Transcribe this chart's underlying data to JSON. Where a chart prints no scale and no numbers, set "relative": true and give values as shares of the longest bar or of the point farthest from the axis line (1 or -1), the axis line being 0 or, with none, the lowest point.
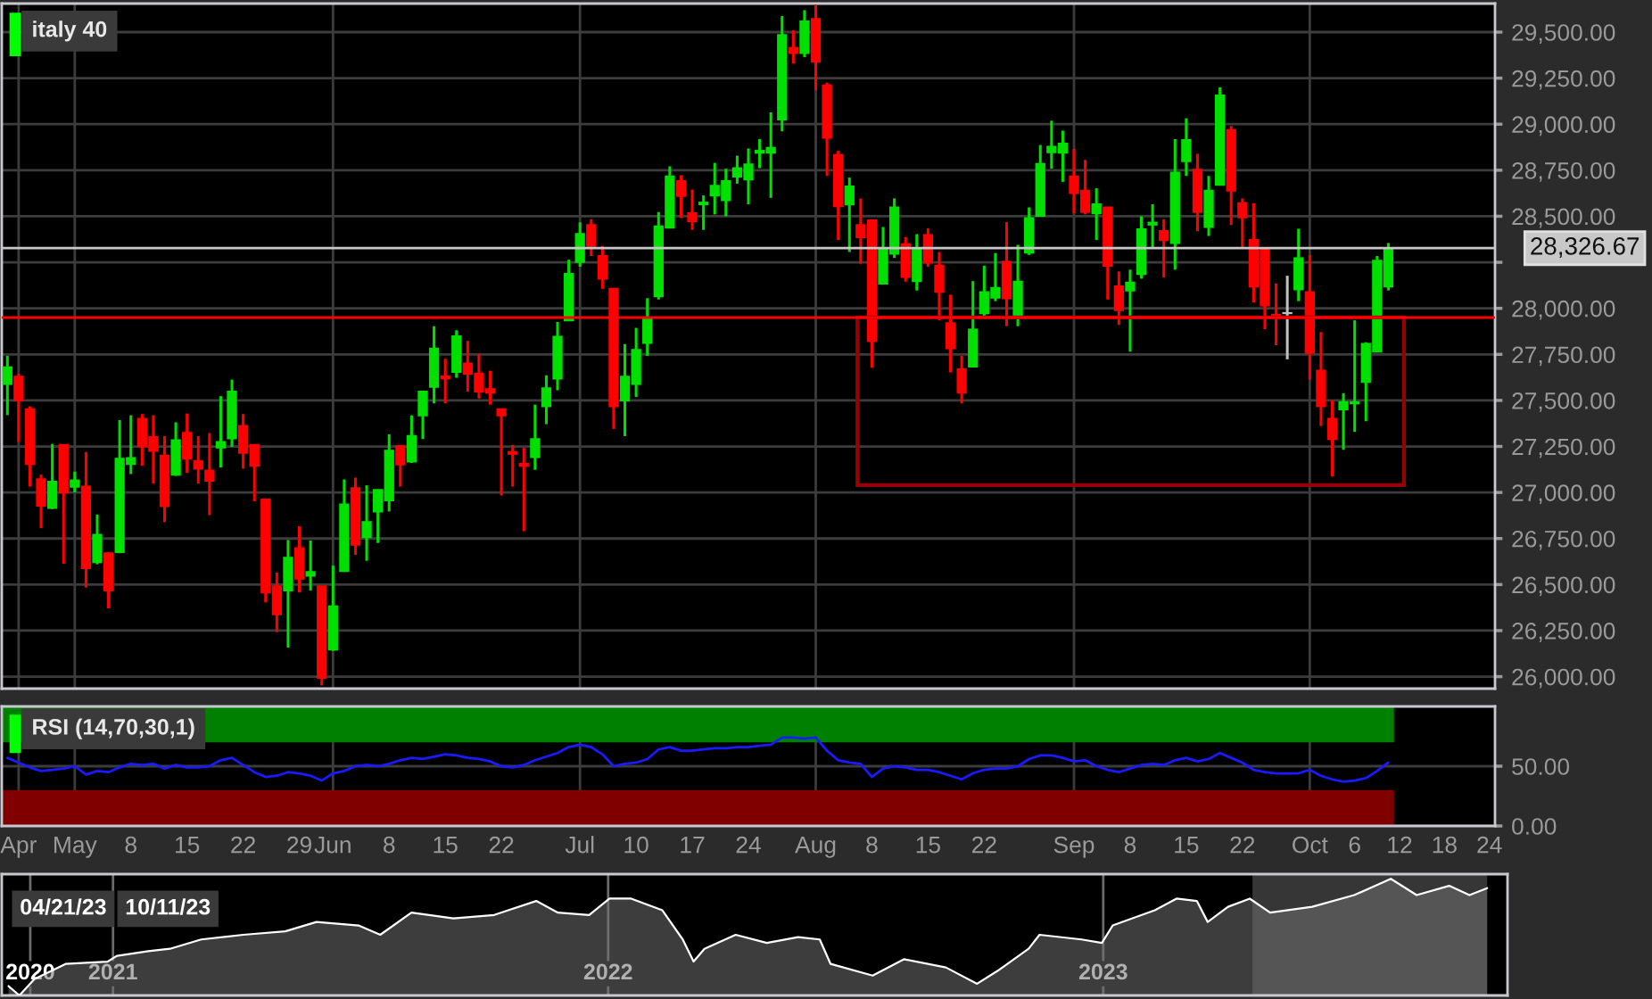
{
  "chart_data": [
    {
      "type": "candlestick",
      "title": "italy 40",
      "categories": [
        null,
        null,
        null,
        null,
        null,
        null,
        null,
        null,
        null,
        null,
        null,
        null,
        null,
        null,
        null,
        null,
        null,
        null,
        null,
        null,
        null,
        null,
        null,
        null,
        null,
        null,
        null,
        null,
        null,
        null,
        null,
        null,
        null,
        null,
        null,
        null,
        null,
        null,
        null,
        null,
        null,
        null,
        null,
        null,
        null,
        null,
        null,
        null,
        null,
        null,
        null,
        null,
        null,
        null,
        null,
        null,
        null,
        null,
        null,
        null,
        null,
        null,
        null,
        null,
        null,
        null,
        null,
        null,
        null,
        null,
        null,
        null,
        null,
        null,
        null,
        null,
        null,
        null,
        null,
        null,
        null,
        null,
        null,
        null,
        null,
        null,
        null,
        null,
        null,
        null,
        null,
        null,
        null,
        null,
        null,
        null,
        null,
        null,
        null,
        null,
        null,
        null,
        null,
        null,
        null,
        null,
        null,
        null,
        null,
        null,
        null,
        null,
        null,
        null,
        null,
        null,
        null,
        null,
        null,
        null,
        null,
        null,
        null,
        null,
        null,
        null,
        null,
        null,
        null,
        null,
        null,
        null,
        null
      ],
      "ohlc": [
        [
          27590,
          27742,
          27420,
          27680
        ],
        [
          27629,
          27645,
          27274,
          27500
        ],
        [
          27452,
          27468,
          27032,
          27155
        ],
        [
          27071,
          27097,
          26806,
          26929
        ],
        [
          26916,
          27264,
          26910,
          27058
        ],
        [
          27258,
          27260,
          26613,
          27000
        ],
        [
          27032,
          27113,
          27000,
          27065
        ],
        [
          27032,
          27220,
          26484,
          26590
        ],
        [
          26622,
          26880,
          26610,
          26770
        ],
        [
          26670,
          26675,
          26371,
          26468
        ],
        [
          26677,
          27393,
          26670,
          27183
        ],
        [
          27155,
          27419,
          27100,
          27187
        ],
        [
          27400,
          27426,
          27145,
          27252
        ],
        [
          27300,
          27419,
          27048,
          27226
        ],
        [
          27200,
          27306,
          26839,
          26926
        ],
        [
          27097,
          27381,
          27090,
          27284
        ],
        [
          27323,
          27429,
          27106,
          27184
        ],
        [
          27171,
          27306,
          27048,
          27129
        ],
        [
          27119,
          27323,
          26877,
          27064
        ],
        [
          27245,
          27523,
          27136,
          27274
        ],
        [
          27294,
          27613,
          27248,
          27548
        ],
        [
          27361,
          27426,
          27129,
          27216
        ],
        [
          27258,
          27258,
          26952,
          27145
        ],
        [
          26961,
          26961,
          26403,
          26458
        ],
        [
          26490,
          26565,
          26242,
          26339
        ],
        [
          26468,
          26742,
          26158,
          26645
        ],
        [
          26697,
          26816,
          26458,
          26532
        ],
        [
          26548,
          26739,
          26468,
          26568
        ],
        [
          26490,
          26490,
          25952,
          25994
        ],
        [
          26148,
          26603,
          26140,
          26381
        ],
        [
          26574,
          27071,
          26570,
          26935
        ],
        [
          27023,
          27081,
          26661,
          26716
        ],
        [
          26758,
          27039,
          26629,
          26839
        ],
        [
          26897,
          27013,
          26726,
          27013
        ],
        [
          26958,
          27316,
          26897,
          27226
        ],
        [
          27252,
          27252,
          27032,
          27152
        ],
        [
          27168,
          27419,
          27161,
          27306
        ],
        [
          27419,
          27548,
          27290,
          27548
        ],
        [
          27574,
          27903,
          27484,
          27781
        ],
        [
          27630,
          27726,
          27484,
          27620
        ],
        [
          27655,
          27881,
          27623,
          27848
        ],
        [
          27700,
          27823,
          27548,
          27645
        ],
        [
          27645,
          27752,
          27510,
          27548
        ],
        [
          27561,
          27661,
          27477,
          27542
        ],
        [
          27452,
          27452,
          26984,
          27419
        ],
        [
          27220,
          27258,
          27032,
          27210
        ],
        [
          27155,
          27242,
          26790,
          27145
        ],
        [
          27193,
          27477,
          27123,
          27290
        ],
        [
          27468,
          27636,
          27371,
          27565
        ],
        [
          27619,
          27926,
          27555,
          27845
        ],
        [
          27935,
          28264,
          27935,
          28187
        ],
        [
          28252,
          28467,
          28226,
          28403
        ],
        [
          28452,
          28484,
          28284,
          28339
        ],
        [
          28284,
          28339,
          28106,
          28161
        ],
        [
          28106,
          28106,
          27345,
          27468
        ],
        [
          27500,
          27806,
          27306,
          27629
        ],
        [
          27590,
          27894,
          27519,
          27774
        ],
        [
          27813,
          28055,
          27742,
          27945
        ],
        [
          28065,
          28523,
          28048,
          28445
        ],
        [
          28439,
          28771,
          28439,
          28716
        ],
        [
          28690,
          28723,
          28490,
          28610
        ],
        [
          28516,
          28645,
          28426,
          28474
        ],
        [
          28565,
          28613,
          28426,
          28574
        ],
        [
          28613,
          28790,
          28510,
          28665
        ],
        [
          28587,
          28758,
          28500,
          28690
        ],
        [
          28716,
          28829,
          28677,
          28761
        ],
        [
          28700,
          28868,
          28565,
          28781
        ],
        [
          28845,
          28919,
          28761,
          28855
        ],
        [
          28845,
          29064,
          28600,
          28871
        ],
        [
          29026,
          29587,
          28961,
          29484
        ],
        [
          29413,
          29510,
          29329,
          29387
        ],
        [
          29387,
          29619,
          29364,
          29558
        ],
        [
          29571,
          29650,
          29184,
          29339
        ],
        [
          29210,
          29226,
          28719,
          28926
        ],
        [
          28832,
          28855,
          28371,
          28555
        ],
        [
          28565,
          28710,
          28306,
          28661
        ],
        [
          28452,
          28597,
          28242,
          28387
        ],
        [
          28477,
          28484,
          27677,
          27823
        ],
        [
          28135,
          28442,
          28129,
          28323
        ],
        [
          28297,
          28597,
          28274,
          28548
        ],
        [
          28348,
          28387,
          28145,
          28171
        ],
        [
          28148,
          28403,
          28097,
          28323
        ],
        [
          28397,
          28435,
          28226,
          28248
        ],
        [
          28232,
          28306,
          27935,
          28090
        ],
        [
          27919,
          28074,
          27652,
          27784
        ],
        [
          27668,
          27742,
          27484,
          27542
        ],
        [
          27684,
          28148,
          27684,
          27884
        ],
        [
          27974,
          28232,
          27952,
          28087
        ],
        [
          28058,
          28300,
          28039,
          28110
        ],
        [
          28252,
          28468,
          27903,
          28055
        ],
        [
          27952,
          28345,
          27903,
          28145
        ],
        [
          28303,
          28548,
          28290,
          28490
        ],
        [
          28503,
          28887,
          28503,
          28784
        ],
        [
          28848,
          29019,
          28758,
          28877
        ],
        [
          28845,
          28965,
          28687,
          28894
        ],
        [
          28716,
          28865,
          28516,
          28626
        ],
        [
          28639,
          28806,
          28510,
          28523
        ],
        [
          28516,
          28652,
          28371,
          28565
        ],
        [
          28548,
          28548,
          28048,
          28232
        ],
        [
          28119,
          28200,
          27910,
          27990
        ],
        [
          28097,
          28210,
          27765,
          28139
        ],
        [
          28187,
          28500,
          28161,
          28429
        ],
        [
          28455,
          28565,
          28323,
          28465
        ],
        [
          28419,
          28484,
          28168,
          28371
        ],
        [
          28355,
          28919,
          28210,
          28736
        ],
        [
          28800,
          29032,
          28719,
          28913
        ],
        [
          28752,
          28839,
          28419,
          28523
        ],
        [
          28442,
          28719,
          28393,
          28639
        ],
        [
          28671,
          29200,
          28671,
          29155
        ],
        [
          28968,
          28990,
          28452,
          28639
        ],
        [
          28571,
          28597,
          28323,
          28494
        ],
        [
          28371,
          28571,
          28032,
          28119
        ],
        [
          28323,
          28323,
          27887,
          28016
        ],
        [
          27965,
          28135,
          27800,
          27955
        ],
        [
          27974,
          28177,
          27723,
          27974
        ],
        [
          28103,
          28432,
          28039,
          28271
        ],
        [
          28087,
          28290,
          27613,
          27758
        ],
        [
          27661,
          27871,
          27361,
          27468
        ],
        [
          27400,
          27500,
          27087,
          27290
        ],
        [
          27452,
          27539,
          27232,
          27490
        ],
        [
          27484,
          27935,
          27329,
          27490
        ],
        [
          27600,
          27816,
          27387,
          27806
        ],
        [
          27765,
          28284,
          27765,
          28258
        ],
        [
          28119,
          28355,
          28097,
          28326.67
        ],
        null,
        null,
        null,
        null,
        null,
        null,
        null,
        null,
        null
      ],
      "colors": [
        "#00e000",
        "#ff0000",
        "#ff0000",
        "#ff0000",
        "#00e000",
        "#ff0000",
        "#00e000",
        "#ff0000",
        "#00e000",
        "#ff0000",
        "#00e000",
        "#00e000",
        "#ff0000",
        "#ff0000",
        "#ff0000",
        "#00e000",
        "#ff0000",
        "#ff0000",
        "#ff0000",
        "#00e000",
        "#00e000",
        "#ff0000",
        "#ff0000",
        "#ff0000",
        "#ff0000",
        "#00e000",
        "#ff0000",
        "#00e000",
        "#ff0000",
        "#00e000",
        "#00e000",
        "#ff0000",
        "#00e000",
        "#00e000",
        "#00e000",
        "#ff0000",
        "#00e000",
        "#00e000",
        "#00e000",
        "#ff0000",
        "#00e000",
        "#ff0000",
        "#ff0000",
        "#ff0000",
        "#ff0000",
        "#ff0000",
        "#ff0000",
        "#00e000",
        "#00e000",
        "#00e000",
        "#00e000",
        "#00e000",
        "#ff0000",
        "#ff0000",
        "#ff0000",
        "#00e000",
        "#00e000",
        "#00e000",
        "#00e000",
        "#00e000",
        "#ff0000",
        "#ff0000",
        "#00e000",
        "#00e000",
        "#00e000",
        "#00e000",
        "#00e000",
        "#00e000",
        "#00e000",
        "#00e000",
        "#ff0000",
        "#00e000",
        "#ff0000",
        "#ff0000",
        "#ff0000",
        "#00e000",
        "#ff0000",
        "#ff0000",
        "#00e000",
        "#00e000",
        "#ff0000",
        "#00e000",
        "#ff0000",
        "#ff0000",
        "#ff0000",
        "#ff0000",
        "#00e000",
        "#00e000",
        "#00e000",
        "#ff0000",
        "#00e000",
        "#00e000",
        "#00e000",
        "#00e000",
        "#00e000",
        "#ff0000",
        "#ff0000",
        "#00e000",
        "#ff0000",
        "#ff0000",
        "#00e000",
        "#00e000",
        "#00e000",
        "#ff0000",
        "#00e000",
        "#00e000",
        "#ff0000",
        "#00e000",
        "#00e000",
        "#ff0000",
        "#ff0000",
        "#ff0000",
        "#ff0000",
        "#ff0000",
        "#c0c0c0",
        "#00e000",
        "#ff0000",
        "#ff0000",
        "#ff0000",
        "#00e000",
        "#00e000",
        "#00e000",
        "#00e000",
        "#00e000",
        null,
        null,
        null,
        null,
        null,
        null,
        null,
        null,
        null
      ],
      "ylim": [
        25935,
        29655
      ],
      "yticks": [
        {
          "value": 26000,
          "label": "26,000.00"
        },
        {
          "value": 26250,
          "label": "26,250.00"
        },
        {
          "value": 26500,
          "label": "26,500.00"
        },
        {
          "value": 26750,
          "label": "26,750.00"
        },
        {
          "value": 27000,
          "label": "27,000.00"
        },
        {
          "value": 27250,
          "label": "27,250.00"
        },
        {
          "value": 27500,
          "label": "27,500.00"
        },
        {
          "value": 27750,
          "label": "27,750.00"
        },
        {
          "value": 28000,
          "label": "28,000.00"
        },
        {
          "value": 28250,
          "label": null
        },
        {
          "value": 28500,
          "label": "28,500.00"
        },
        {
          "value": 28750,
          "label": "28,750.00"
        },
        {
          "value": 29000,
          "label": "29,000.00"
        },
        {
          "value": 29250,
          "label": "29,250.00"
        },
        {
          "value": 29500,
          "label": "29,500.00"
        }
      ],
      "ref_lines": [
        {
          "axis": "y",
          "value": 27950,
          "color": "#ff0000"
        },
        {
          "axis": "y",
          "value": 28326.67,
          "label": "28,326.67",
          "color": "#c8c8c8"
        }
      ],
      "grid": true,
      "tick_labels": "y"
    },
    {
      "type": "line",
      "title": "RSI (14,70,30,1)",
      "categories": [
        null,
        "Apr",
        null,
        null,
        null,
        null,
        "May",
        null,
        null,
        null,
        null,
        "8",
        null,
        null,
        null,
        null,
        "15",
        null,
        null,
        null,
        null,
        "22",
        null,
        null,
        null,
        null,
        "29",
        null,
        null,
        "Jun",
        null,
        null,
        null,
        null,
        "8",
        null,
        null,
        null,
        null,
        "15",
        null,
        null,
        null,
        null,
        "22",
        null,
        null,
        null,
        null,
        null,
        null,
        "Jul",
        null,
        null,
        null,
        null,
        "10",
        null,
        null,
        null,
        null,
        "17",
        null,
        null,
        null,
        null,
        "24",
        null,
        null,
        null,
        null,
        null,
        "Aug",
        null,
        null,
        null,
        null,
        "8",
        null,
        null,
        null,
        null,
        "15",
        null,
        null,
        null,
        null,
        "22",
        null,
        null,
        null,
        null,
        null,
        null,
        null,
        "Sep",
        null,
        null,
        null,
        null,
        "8",
        null,
        null,
        null,
        null,
        "15",
        null,
        null,
        null,
        null,
        "22",
        null,
        null,
        null,
        null,
        null,
        "Oct",
        null,
        null,
        null,
        "6",
        null,
        null,
        null,
        "12",
        null,
        null,
        null,
        "18",
        null,
        null,
        null,
        "24"
      ],
      "series": [
        {
          "color": "#1a1aff",
          "values": [
            57,
            53,
            49,
            46,
            47,
            48,
            50,
            43,
            46,
            45,
            49,
            52,
            51,
            52,
            48,
            51,
            49,
            49,
            50,
            55,
            57,
            51,
            45,
            41,
            42,
            45,
            44,
            42,
            38,
            44,
            46,
            50,
            51,
            50,
            52,
            55,
            57,
            56,
            58,
            60,
            59,
            57,
            56,
            54,
            50,
            49,
            51,
            55,
            58,
            61,
            66,
            68,
            66,
            60,
            50,
            52,
            53,
            56,
            64,
            66,
            63,
            63,
            64,
            65,
            65,
            66,
            66,
            67,
            68,
            74,
            74,
            73,
            74,
            63,
            55,
            53,
            52,
            41,
            48,
            50,
            49,
            47,
            47,
            45,
            42,
            39,
            44,
            47,
            48,
            48,
            50,
            56,
            59,
            59,
            57,
            54,
            55,
            50,
            47,
            45,
            48,
            51,
            52,
            51,
            55,
            57,
            54,
            56,
            61,
            57,
            53,
            47,
            45,
            44,
            44,
            44,
            47,
            42,
            39,
            37,
            38,
            40,
            46,
            53,
            null,
            null,
            null,
            null,
            null,
            null,
            null,
            null,
            null
          ]
        }
      ],
      "ylim": [
        0,
        100
      ],
      "yticks": [
        {
          "value": 0,
          "label": "0.00"
        },
        {
          "value": 50,
          "label": "50.00"
        }
      ],
      "bands": [
        {
          "axis": "y",
          "from": 70,
          "to": 100,
          "color": "#008000"
        },
        {
          "axis": "y",
          "from": 0,
          "to": 30,
          "color": "#800000"
        }
      ],
      "grid": true
    },
    {
      "type": "area",
      "relative": true,
      "x": [
        "2020-10-16",
        "2020-10-24",
        "2020-11-04",
        "2020-11-27",
        "2020-12-28",
        "2021-01-04",
        "2021-01-27",
        "2021-02-12",
        "2021-03-07",
        "2021-04-07",
        "2021-05-08",
        "2021-05-31",
        "2021-07-01",
        "2021-07-17",
        "2021-08-09",
        "2021-09-09",
        "2021-10-09",
        "2021-11-09",
        "2021-11-25",
        "2021-12-18",
        "2022-01-02",
        "2022-01-18",
        "2022-02-10",
        "2022-02-25",
        "2022-03-05",
        "2022-03-13",
        "2022-04-05",
        "2022-04-28",
        "2022-05-21",
        "2022-06-06",
        "2022-06-14",
        "2022-07-15",
        "2022-08-07",
        "2022-09-07",
        "2022-09-30",
        "2022-10-15",
        "2022-11-07",
        "2022-11-15",
        "2022-12-16",
        "2022-12-31",
        "2023-01-08",
        "2023-02-08",
        "2023-02-24",
        "2023-03-11",
        "2023-03-19",
        "2023-04-03",
        "2023-04-19",
        "2023-05-04",
        "2023-06-04",
        "2023-07-05",
        "2023-08-01",
        "2023-08-20",
        "2023-09-13",
        "2023-09-28",
        "2023-10-11"
      ],
      "series": [
        {
          "color": "#ffffff",
          "values": [
            0.08,
            0,
            0.14,
            0.27,
            0.29,
            0.34,
            0.38,
            0.4,
            0.48,
            0.52,
            0.55,
            0.63,
            0.6,
            0.52,
            0.71,
            0.66,
            0.69,
            0.81,
            0.71,
            0.69,
            0.83,
            0.83,
            0.73,
            0.48,
            0.29,
            0.4,
            0.52,
            0.45,
            0.5,
            0.48,
            0.27,
            0.17,
            0.31,
            0.24,
            0.1,
            0.21,
            0.4,
            0.52,
            0.48,
            0.45,
            0.6,
            0.73,
            0.83,
            0.81,
            0.63,
            0.76,
            0.83,
            0.71,
            0.76,
            0.86,
            1,
            0.86,
            0.94,
            0.86,
            0.92
          ]
        }
      ],
      "xlim": [
        "2020-10-11",
        "2023-10-26"
      ],
      "xticks": [
        {
          "value": "2020-11-01",
          "label": "2020"
        },
        {
          "value": "2021-01-01",
          "label": "2021"
        },
        {
          "value": "2022-01-01",
          "label": "2022"
        },
        {
          "value": "2023-01-01",
          "label": "2023"
        }
      ],
      "bands": [
        {
          "axis": "x",
          "from": "2023-04-21",
          "to": "2023-10-11",
          "color": "#9a9a9a"
        }
      ],
      "annotations": [
        "04/21/23",
        "10/11/23"
      ],
      "grid": "x",
      "tick_labels": "x"
    }
  ]
}
